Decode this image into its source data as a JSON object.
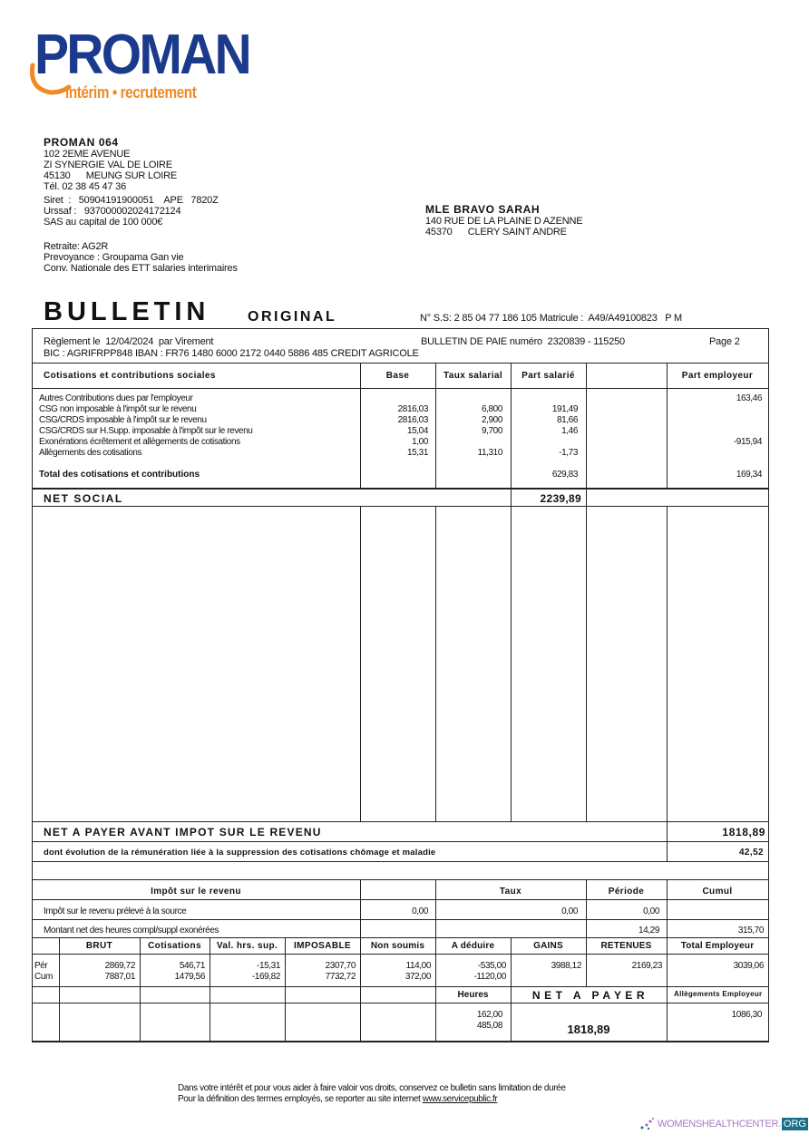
{
  "logo": {
    "name": "PROMAN",
    "tagline": "intérim • recrutement",
    "colors": {
      "blue": "#1b3a8c",
      "orange": "#ef8a25"
    }
  },
  "employer": {
    "name": "PROMAN 064",
    "lines": [
      "102 2EME AVENUE",
      "ZI SYNERGIE VAL DE LOIRE",
      "45130      MEUNG SUR LOIRE",
      "Tél. 02 38 45 47 36",
      "Siret  :   50904191900051    APE   7820Z",
      "Urssaf :   937000002024172124",
      "SAS au capital de 100 000€"
    ],
    "extra": [
      "Retraite: AG2R",
      "Prevoyance : Groupama Gan vie",
      "Conv. Nationale des ETT salaries interimaires"
    ]
  },
  "employee": {
    "name": "MLE BRAVO SARAH",
    "address": "140 RUE DE LA PLAINE D AZENNE",
    "city": "45370      CLERY SAINT ANDRE"
  },
  "title": "BULLETIN",
  "original": "ORIGINAL",
  "ss_line": "N° S.S: 2 85 04 77 186 105 Matricule :  A49/A49100823   P M",
  "info": {
    "reglement": "Règlement le  12/04/2024  par Virement",
    "bulletin": "BULLETIN DE PAIE numéro  2320839 - 115250",
    "page": "Page 2",
    "bank": "BIC : AGRIFRPP848 IBAN : FR76 1480 6000 2172 0440 5886 485 CREDIT AGRICOLE"
  },
  "cotisations": {
    "headers": [
      "Cotisations et contributions sociales",
      "Base",
      "Taux salarial",
      "Part salarié",
      "",
      "Part employeur"
    ],
    "rows": [
      {
        "label": "Autres Contributions dues par l'employeur",
        "base": "",
        "taux": "",
        "salarie": "",
        "employeur": "163,46"
      },
      {
        "label": "CSG non imposable à l'impôt sur le revenu",
        "base": "2816,03",
        "taux": "6,800",
        "salarie": "191,49",
        "employeur": ""
      },
      {
        "label": "CSG/CRDS  imposable à l'impôt sur le revenu",
        "base": "2816,03",
        "taux": "2,900",
        "salarie": "81,66",
        "employeur": ""
      },
      {
        "label": "CSG/CRDS sur H.Supp. imposable à l'impôt sur le revenu",
        "base": "15,04",
        "taux": "9,700",
        "salarie": "1,46",
        "employeur": ""
      },
      {
        "label": "Exonérations écrêtement et allègements de cotisations",
        "base": "1,00",
        "taux": "",
        "salarie": "",
        "employeur": "-915,94"
      },
      {
        "label": "Allègements des cotisations",
        "base": "15,31",
        "taux": "11,310",
        "salarie": "-1,73",
        "employeur": ""
      }
    ],
    "total": {
      "label": "Total des cotisations et contributions",
      "salarie": "629,83",
      "employeur": "169,34"
    }
  },
  "net_social": {
    "label": "NET SOCIAL",
    "value": "2239,89"
  },
  "net_avant_impot": {
    "label": "NET A PAYER AVANT IMPOT SUR LE REVENU",
    "value": "1818,89"
  },
  "evolution": {
    "label": "dont évolution de la rémunération liée à la suppression des cotisations chômage et maladie",
    "value": "42,52"
  },
  "impot": {
    "headers": [
      "Impôt sur le revenu",
      "Taux",
      "Période",
      "Cumul"
    ],
    "prelev": {
      "label": "Impôt sur le revenu prélevé à la source",
      "base": "0,00",
      "taux": "0,00",
      "periode": "0,00",
      "cumul": ""
    },
    "heures": {
      "label": "Montant net des heures compl/suppl exonérées",
      "periode": "14,29",
      "cumul": "315,70"
    }
  },
  "totaux": {
    "headers": [
      "BRUT",
      "Cotisations",
      "Val. hrs. sup.",
      "IMPOSABLE",
      "Non soumis",
      "A déduire",
      "GAINS",
      "RETENUES",
      "Total Employeur"
    ],
    "per": {
      "label": "Pér",
      "values": [
        "2869,72",
        "546,71",
        "-15,31",
        "2307,70",
        "114,00",
        "-535,00",
        "3988,12",
        "2169,23",
        "3039,06"
      ]
    },
    "cum": {
      "label": "Cum",
      "values": [
        "7887,01",
        "1479,56",
        "-169,82",
        "7732,72",
        "372,00",
        "-1120,00"
      ]
    }
  },
  "final": {
    "heures_label": "Heures",
    "net_label": "N E T   A   P A Y E R",
    "allegements_label": "Allègements Employeur",
    "heures": [
      "162,00",
      "485,08"
    ],
    "net": "1818,89",
    "allegements": "1086,30"
  },
  "footer": {
    "line1": "Dans votre intérêt et pour vous aider à faire valoir vos droits, conservez ce bulletin sans limitation de durée",
    "line2_prefix": "Pour la définition des termes employés, se reporter au site internet ",
    "link": "www.servicepublic.fr"
  },
  "watermark": {
    "text": "WOMENSHEALTHCENTER.",
    "org": "ORG"
  }
}
